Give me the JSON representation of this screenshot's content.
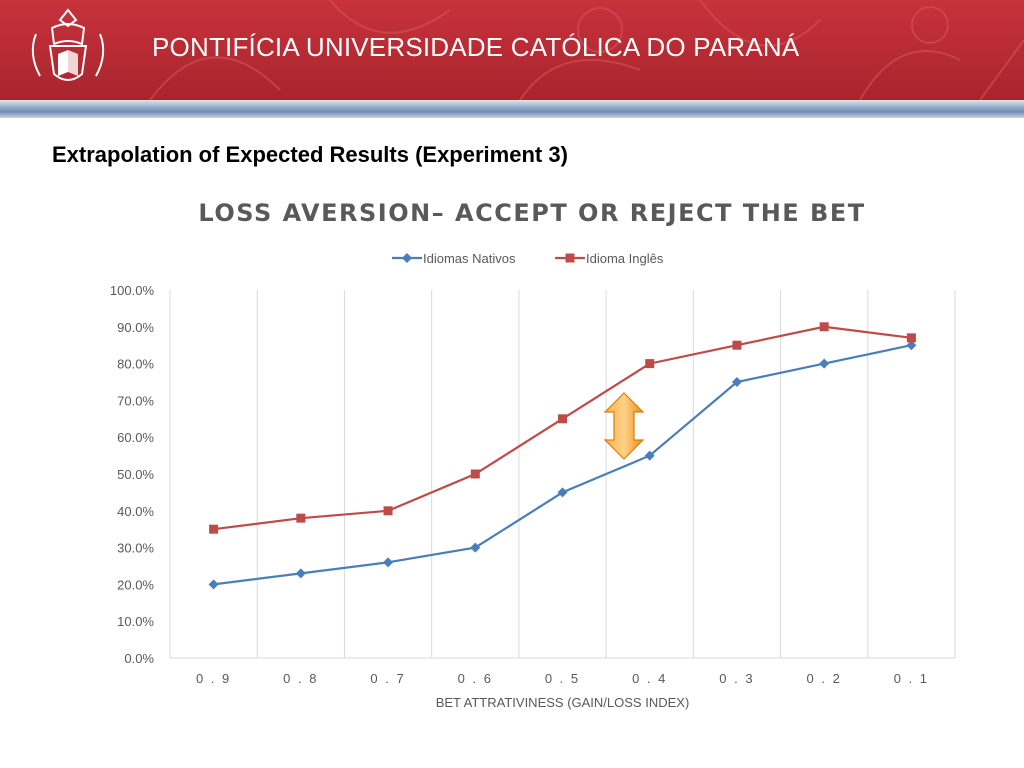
{
  "header": {
    "university_name": "PONTIFÍCIA UNIVERSIDADE CATÓLICA DO PARANÁ",
    "logo_icon": "university-crest-icon",
    "brand_color": "#b52a33",
    "stripe_color": "#6f8db3"
  },
  "slide": {
    "heading": "Extrapolation of Expected Results (Experiment 3)"
  },
  "annotation": {
    "icon": "double-arrow-icon",
    "color": "#f39a1e"
  },
  "chart_data": {
    "type": "line",
    "title": "LOSS AVERSION– ACCEPT OR REJECT THE BET",
    "xlabel": "BET ATTRATIVINESS (GAIN/LOSS INDEX)",
    "ylabel": "",
    "categories": [
      "0.9",
      "0.8",
      "0.7",
      "0.6",
      "0.5",
      "0.4",
      "0.3",
      "0.2",
      "0.1"
    ],
    "ylim": [
      0,
      100
    ],
    "yticks": [
      "0.0%",
      "10.0%",
      "20.0%",
      "30.0%",
      "40.0%",
      "50.0%",
      "60.0%",
      "70.0%",
      "80.0%",
      "90.0%",
      "100.0%"
    ],
    "grid": "vertical",
    "legend_position": "top",
    "series": [
      {
        "name": "Idiomas Nativos",
        "color": "#4a7ebb",
        "marker": "diamond",
        "values": [
          20,
          23,
          26,
          30,
          45,
          55,
          75,
          80,
          85
        ]
      },
      {
        "name": "Idioma Inglês",
        "color": "#be4b48",
        "marker": "square",
        "values": [
          35,
          38,
          40,
          50,
          65,
          80,
          85,
          90,
          87
        ]
      }
    ]
  }
}
